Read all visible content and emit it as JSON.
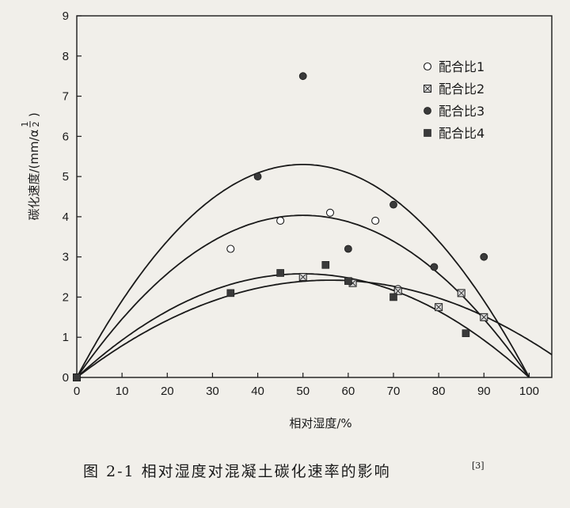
{
  "chart_data": {
    "type": "scatter",
    "title": "",
    "xlabel": "相对湿度/%",
    "ylabel": "碳化速度/(mm/α",
    "ylabel_exponent_num": "1",
    "ylabel_exponent_den": "2",
    "ylabel_close": ")",
    "xlim": [
      0,
      105
    ],
    "ylim": [
      0,
      9
    ],
    "xticks": [
      0,
      10,
      20,
      30,
      40,
      50,
      60,
      70,
      80,
      90,
      100
    ],
    "yticks": [
      0,
      1,
      2,
      3,
      4,
      5,
      6,
      7,
      8,
      9
    ],
    "grid": false,
    "legend_position": "top-right",
    "series": [
      {
        "name": "配合比1",
        "marker": "open-circle",
        "points": [
          [
            0,
            0
          ],
          [
            34,
            3.2
          ],
          [
            45,
            3.9
          ],
          [
            56,
            4.1
          ],
          [
            66,
            3.9
          ],
          [
            71,
            2.2
          ]
        ]
      },
      {
        "name": "配合比2",
        "marker": "dotted-square",
        "points": [
          [
            0,
            0
          ],
          [
            50,
            2.5
          ],
          [
            61,
            2.35
          ],
          [
            71,
            2.15
          ],
          [
            80,
            1.75
          ],
          [
            85,
            2.1
          ],
          [
            90,
            1.5
          ]
        ]
      },
      {
        "name": "配合比3",
        "marker": "filled-circle",
        "points": [
          [
            0,
            0
          ],
          [
            40,
            5.0
          ],
          [
            50,
            7.5
          ],
          [
            60,
            3.2
          ],
          [
            70,
            4.3
          ],
          [
            79,
            2.75
          ],
          [
            90,
            3.0
          ]
        ]
      },
      {
        "name": "配合比4",
        "marker": "filled-square",
        "points": [
          [
            0,
            0
          ],
          [
            34,
            2.1
          ],
          [
            45,
            2.6
          ],
          [
            55,
            2.8
          ],
          [
            60,
            2.4
          ],
          [
            70,
            2.0
          ],
          [
            86,
            1.1
          ]
        ]
      }
    ],
    "fit_curves": [
      {
        "x_end": 100,
        "peak_x": 50,
        "peak_y": 5.3
      },
      {
        "x_end": 100,
        "peak_x": 53,
        "peak_y": 4.02
      },
      {
        "x_end": 100,
        "peak_x": 53,
        "peak_y": 2.57
      },
      {
        "x_end": 112,
        "peak_x": 55,
        "peak_y": 2.42
      }
    ]
  },
  "caption": {
    "text": "图 2-1   相对湿度对混凝土碳化速率的影响",
    "ref": "[3]"
  },
  "colors": {
    "background": "#f1efea",
    "ink": "#1a1a1a",
    "marker_fill_dark": "#3a3a3a"
  }
}
